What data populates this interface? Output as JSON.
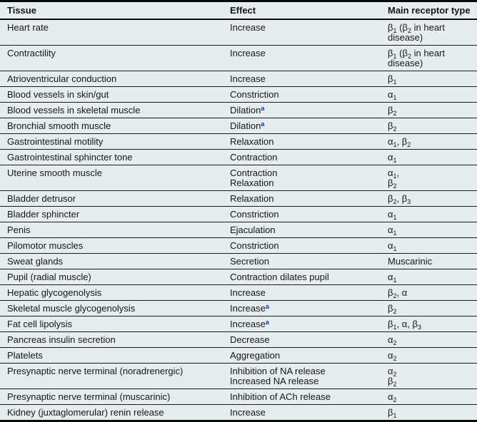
{
  "accent_colors": {
    "footnote_marker_blue": "#0033bb",
    "background": "#e6edee",
    "rule_black": "#0a0a0a"
  },
  "table": {
    "headers": [
      "Tissue",
      "Effect",
      "Main receptor type"
    ],
    "rows": [
      {
        "tissue": "Heart rate",
        "effects": [
          {
            "text": "Increase"
          }
        ],
        "receptors": [
          "β₁ (β₂ in heart disease)"
        ]
      },
      {
        "tissue": "Contractility",
        "effects": [
          {
            "text": "Increase"
          }
        ],
        "receptors": [
          "β₁ (β₂ in heart disease)"
        ]
      },
      {
        "tissue": "Atrioventricular conduction",
        "effects": [
          {
            "text": "Increase"
          }
        ],
        "receptors": [
          "β₁"
        ]
      },
      {
        "tissue": "Blood vessels in skin/gut",
        "effects": [
          {
            "text": "Constriction"
          }
        ],
        "receptors": [
          "α₁"
        ]
      },
      {
        "tissue": "Blood vessels in skeletal muscle",
        "effects": [
          {
            "text": "Dilation",
            "sup": "a"
          }
        ],
        "receptors": [
          "β₂"
        ]
      },
      {
        "tissue": "Bronchial smooth muscle",
        "effects": [
          {
            "text": "Dilation",
            "sup": "a"
          }
        ],
        "receptors": [
          "β₂"
        ]
      },
      {
        "tissue": "Gastrointestinal motility",
        "effects": [
          {
            "text": "Relaxation"
          }
        ],
        "receptors": [
          "α₁, β₂"
        ]
      },
      {
        "tissue": "Gastrointestinal sphincter tone",
        "effects": [
          {
            "text": "Contraction"
          }
        ],
        "receptors": [
          "α₁"
        ]
      },
      {
        "tissue": "Uterine smooth muscle",
        "effects": [
          {
            "text": "Contraction"
          },
          {
            "text": "Relaxation"
          }
        ],
        "receptors": [
          "α₁,",
          "β₂"
        ]
      },
      {
        "tissue": "Bladder detrusor",
        "effects": [
          {
            "text": "Relaxation"
          }
        ],
        "receptors": [
          "β₂, β₃"
        ]
      },
      {
        "tissue": "Bladder sphincter",
        "effects": [
          {
            "text": "Constriction"
          }
        ],
        "receptors": [
          "α₁"
        ]
      },
      {
        "tissue": "Penis",
        "effects": [
          {
            "text": "Ejaculation"
          }
        ],
        "receptors": [
          "α₁"
        ]
      },
      {
        "tissue": "Pilomotor muscles",
        "effects": [
          {
            "text": "Constriction"
          }
        ],
        "receptors": [
          "α₁"
        ]
      },
      {
        "tissue": "Sweat glands",
        "effects": [
          {
            "text": "Secretion"
          }
        ],
        "receptors": [
          "Muscarinic"
        ]
      },
      {
        "tissue": "Pupil (radial muscle)",
        "effects": [
          {
            "text": "Contraction dilates pupil"
          }
        ],
        "receptors": [
          "α₁"
        ]
      },
      {
        "tissue": "Hepatic glycogenolysis",
        "effects": [
          {
            "text": "Increase"
          }
        ],
        "receptors": [
          "β₂, α"
        ]
      },
      {
        "tissue": "Skeletal muscle glycogenolysis",
        "effects": [
          {
            "text": "Increase",
            "sup": "a"
          }
        ],
        "receptors": [
          "β₂"
        ]
      },
      {
        "tissue": "Fat cell lipolysis",
        "effects": [
          {
            "text": "Increase",
            "sup": "a"
          }
        ],
        "receptors": [
          "β₁, α, β₃"
        ]
      },
      {
        "tissue": "Pancreas insulin secretion",
        "effects": [
          {
            "text": "Decrease"
          }
        ],
        "receptors": [
          "α₂"
        ]
      },
      {
        "tissue": "Platelets",
        "effects": [
          {
            "text": "Aggregation"
          }
        ],
        "receptors": [
          "α₂"
        ]
      },
      {
        "tissue": "Presynaptic nerve terminal (noradrenergic)",
        "effects": [
          {
            "text": "Inhibition of NA release"
          },
          {
            "text": "Increased NA release"
          }
        ],
        "receptors": [
          "α₂",
          "β₂"
        ]
      },
      {
        "tissue": "Presynaptic nerve terminal (muscarinic)",
        "effects": [
          {
            "text": "Inhibition of ACh release"
          }
        ],
        "receptors": [
          "α₂"
        ]
      },
      {
        "tissue": "Kidney (juxtaglomerular) renin release",
        "effects": [
          {
            "text": "Increase"
          }
        ],
        "receptors": [
          "β₁"
        ]
      }
    ]
  }
}
